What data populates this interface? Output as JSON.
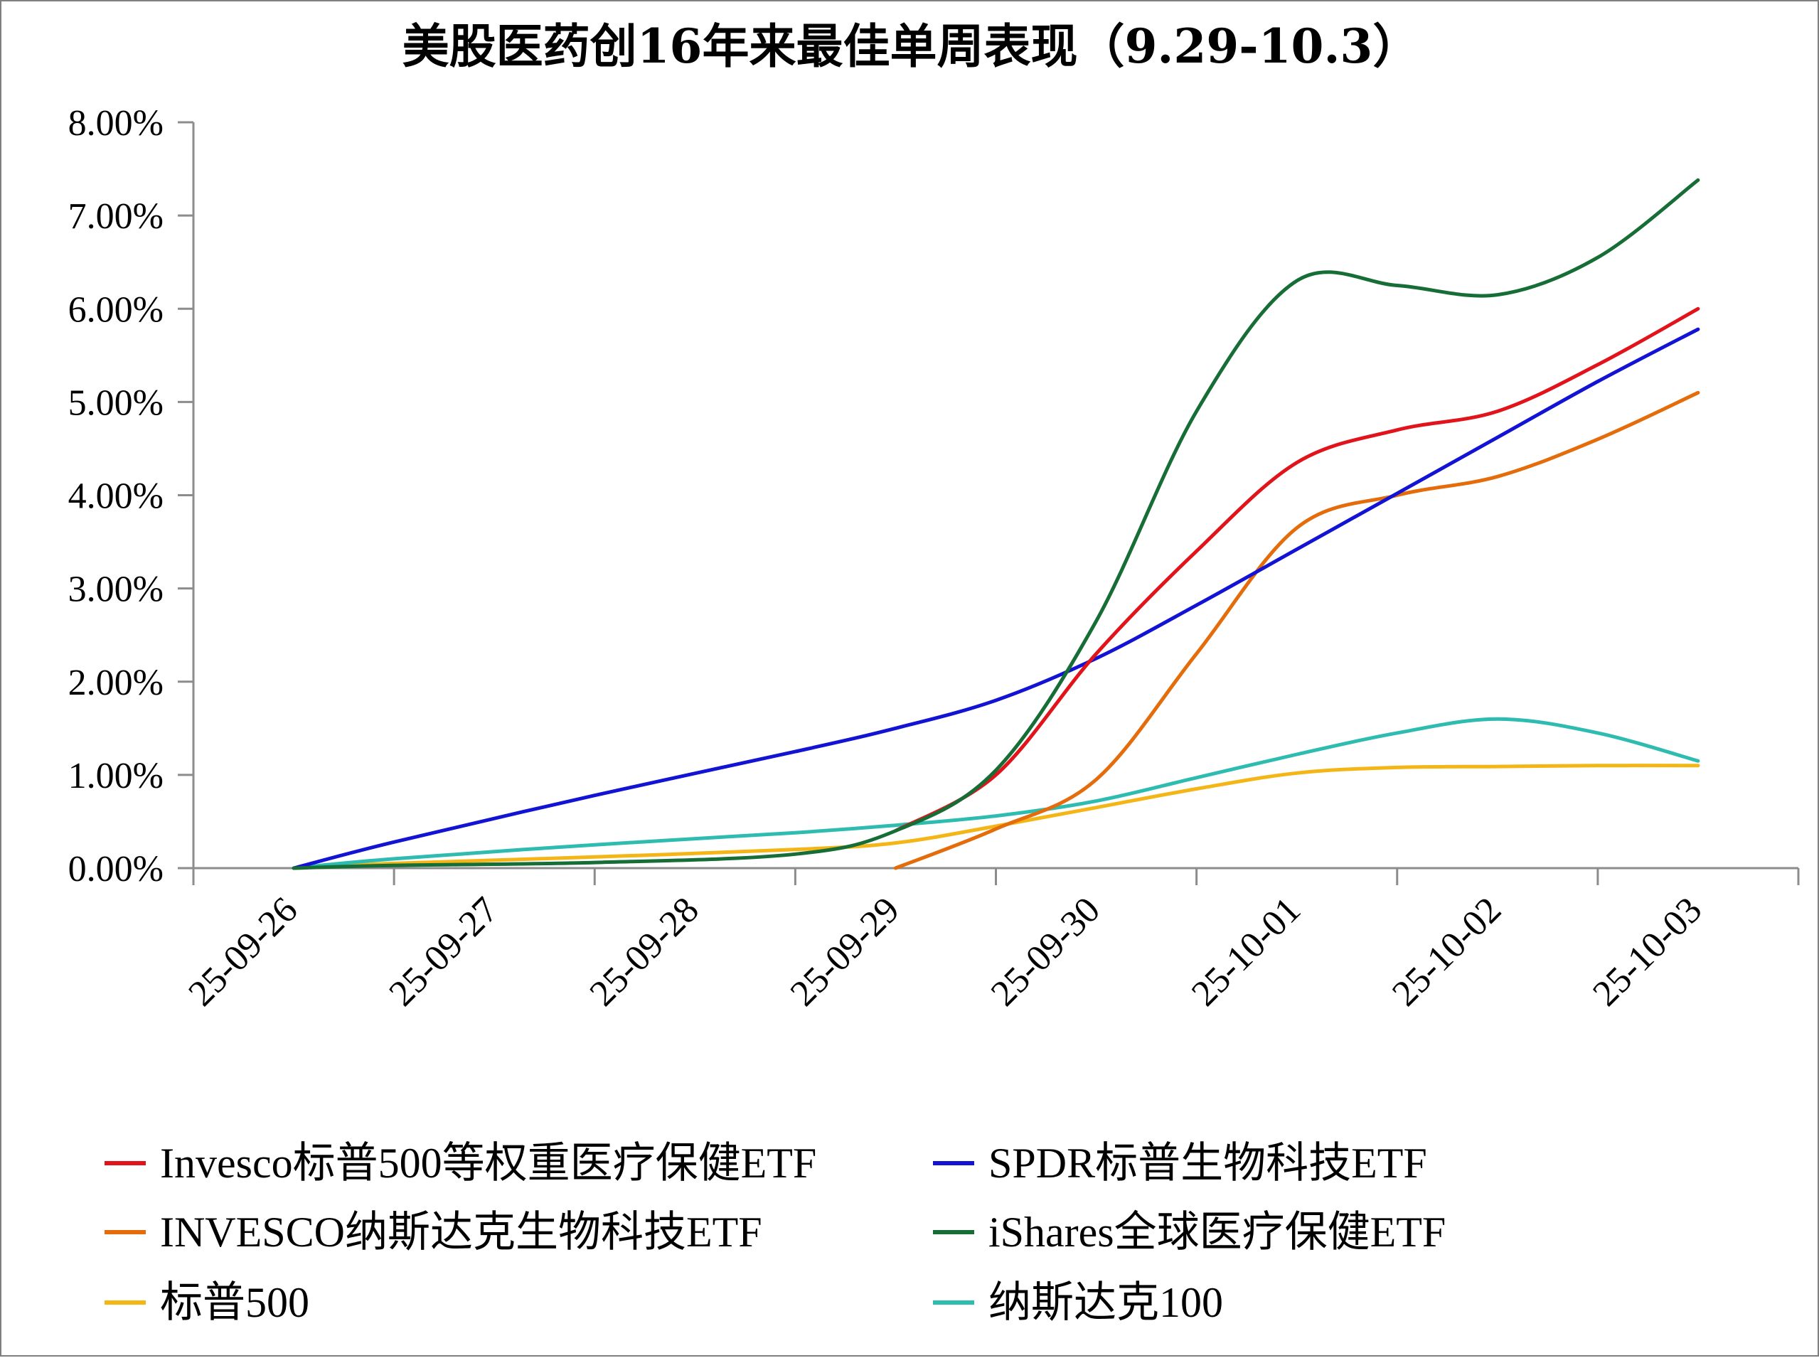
{
  "chart_data": {
    "type": "line",
    "title": "美股医药创16年来最佳单周表现（9.29-10.3）",
    "xlabel": "",
    "ylabel": "",
    "categories": [
      "25-09-26",
      "25-09-27",
      "25-09-28",
      "25-09-29",
      "25-09-30",
      "25-10-01",
      "25-10-02",
      "25-10-03"
    ],
    "y_ticks": [
      "0.00%",
      "1.00%",
      "2.00%",
      "3.00%",
      "4.00%",
      "5.00%",
      "6.00%",
      "7.00%",
      "8.00%"
    ],
    "ylim": [
      0,
      8
    ],
    "y_unit": "%",
    "grid": false,
    "legend_position": "bottom",
    "series": [
      {
        "name": "Invesco标普500等权重医疗保健ETF",
        "color": "#e2141b",
        "points": [
          [
            3.5,
            0.4
          ],
          [
            4.0,
            1.0
          ],
          [
            4.5,
            2.3
          ],
          [
            5.0,
            3.4
          ],
          [
            5.5,
            4.35
          ],
          [
            6.0,
            4.7
          ],
          [
            6.5,
            4.9
          ],
          [
            7.0,
            5.4
          ],
          [
            7.5,
            6.0
          ]
        ]
      },
      {
        "name": "SPDR标普生物科技ETF",
        "color": "#1313d4",
        "points": [
          [
            0.5,
            0.0
          ],
          [
            1.0,
            0.28
          ],
          [
            2.0,
            0.78
          ],
          [
            3.0,
            1.25
          ],
          [
            3.5,
            1.5
          ],
          [
            4.0,
            1.8
          ],
          [
            4.5,
            2.25
          ],
          [
            5.0,
            2.82
          ],
          [
            5.5,
            3.42
          ],
          [
            6.0,
            4.02
          ],
          [
            6.5,
            4.62
          ],
          [
            7.0,
            5.22
          ],
          [
            7.5,
            5.78
          ]
        ]
      },
      {
        "name": "INVESCO纳斯达克生物科技ETF",
        "color": "#e46c0a",
        "points": [
          [
            3.5,
            0.0
          ],
          [
            4.0,
            0.42
          ],
          [
            4.5,
            0.95
          ],
          [
            5.0,
            2.3
          ],
          [
            5.5,
            3.65
          ],
          [
            6.0,
            4.0
          ],
          [
            6.5,
            4.2
          ],
          [
            7.0,
            4.6
          ],
          [
            7.5,
            5.1
          ]
        ]
      },
      {
        "name": "iShares全球医疗保健ETF",
        "color": "#166e36",
        "points": [
          [
            0.5,
            0.0
          ],
          [
            1.0,
            0.03
          ],
          [
            2.0,
            0.06
          ],
          [
            3.0,
            0.15
          ],
          [
            3.5,
            0.4
          ],
          [
            4.0,
            1.05
          ],
          [
            4.5,
            2.65
          ],
          [
            5.0,
            4.9
          ],
          [
            5.5,
            6.3
          ],
          [
            6.0,
            6.25
          ],
          [
            6.5,
            6.15
          ],
          [
            7.0,
            6.55
          ],
          [
            7.5,
            7.38
          ]
        ]
      },
      {
        "name": "标普500",
        "color": "#f4b616",
        "points": [
          [
            0.5,
            0.0
          ],
          [
            1.0,
            0.05
          ],
          [
            2.0,
            0.12
          ],
          [
            3.0,
            0.2
          ],
          [
            3.5,
            0.27
          ],
          [
            4.0,
            0.45
          ],
          [
            4.5,
            0.65
          ],
          [
            5.0,
            0.85
          ],
          [
            5.5,
            1.02
          ],
          [
            6.0,
            1.08
          ],
          [
            6.5,
            1.09
          ],
          [
            7.0,
            1.1
          ],
          [
            7.5,
            1.1
          ]
        ]
      },
      {
        "name": "纳斯达克100",
        "color": "#2fbcb0",
        "points": [
          [
            0.5,
            0.0
          ],
          [
            1.0,
            0.1
          ],
          [
            2.0,
            0.25
          ],
          [
            3.0,
            0.38
          ],
          [
            3.5,
            0.46
          ],
          [
            4.0,
            0.56
          ],
          [
            4.5,
            0.72
          ],
          [
            5.0,
            0.97
          ],
          [
            5.5,
            1.22
          ],
          [
            6.0,
            1.45
          ],
          [
            6.5,
            1.6
          ],
          [
            7.0,
            1.45
          ],
          [
            7.5,
            1.15
          ]
        ]
      }
    ]
  }
}
